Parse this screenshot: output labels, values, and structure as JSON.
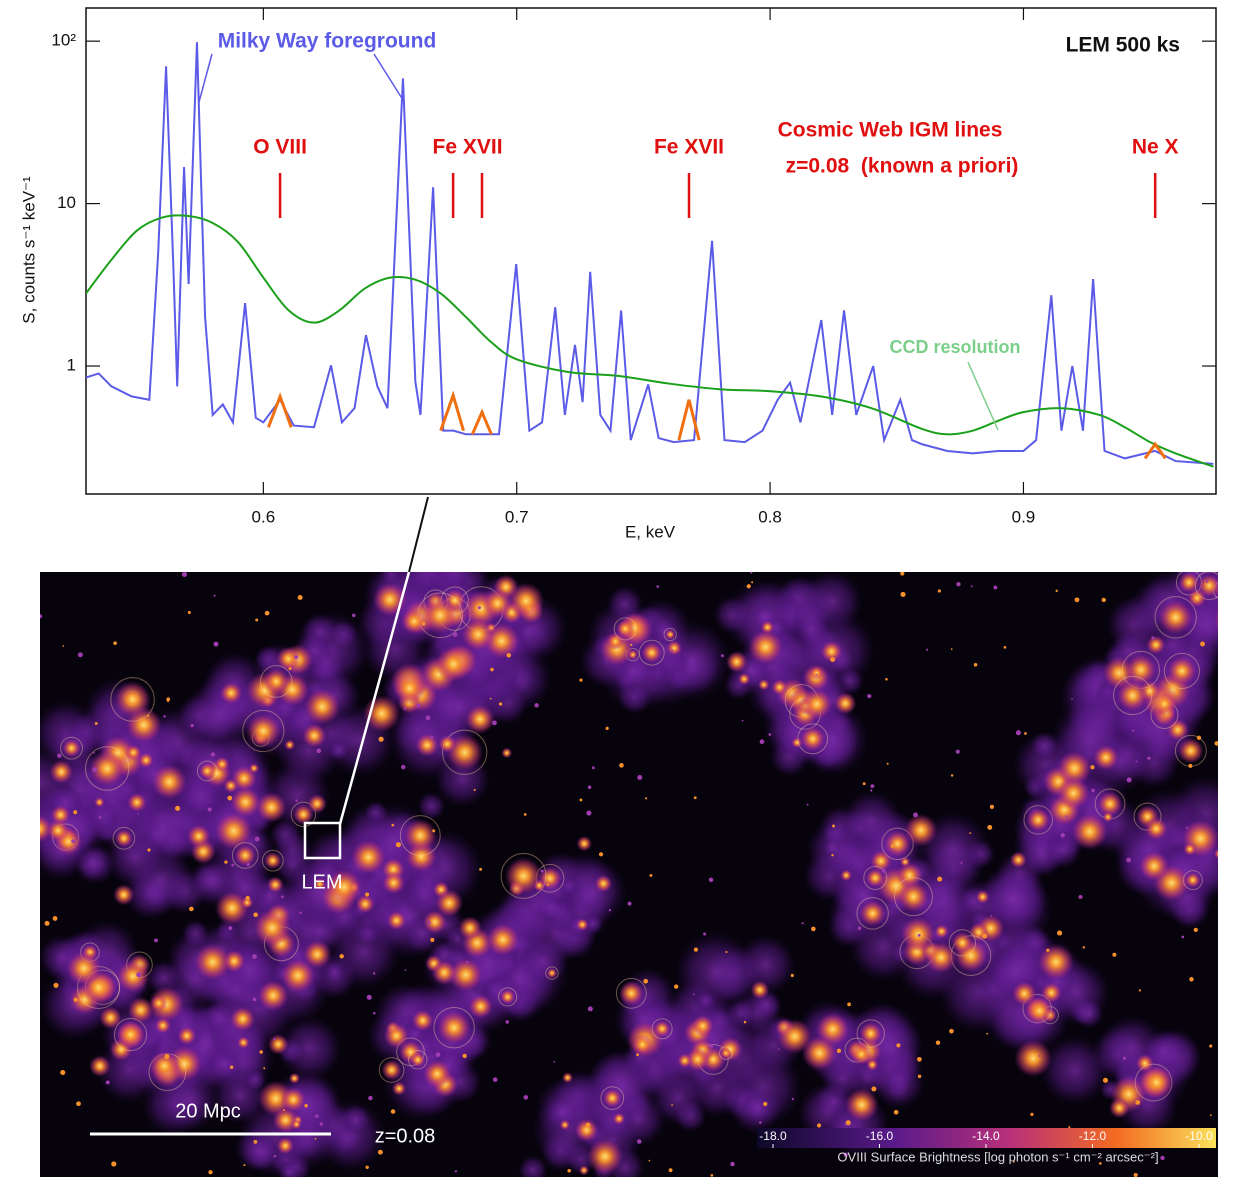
{
  "chart_data": {
    "type": "line",
    "xlabel": "E, keV",
    "ylabel": "S, counts s⁻¹ keV⁻¹",
    "xlim": [
      0.53,
      0.976
    ],
    "ylim": [
      0.163,
      160
    ],
    "log_y": true,
    "xticks": [
      0.6,
      0.7,
      0.8,
      0.9
    ],
    "yticks": [
      {
        "value": 100,
        "label": "10²"
      },
      10,
      1
    ],
    "series": [
      {
        "color": "#5b5be8",
        "x": [
          0.53,
          0.535,
          0.54,
          0.548,
          0.555,
          0.5585,
          0.5616,
          0.5645,
          0.566,
          0.5687,
          0.5705,
          0.5738,
          0.577,
          0.58,
          0.584,
          0.588,
          0.5928,
          0.597,
          0.6,
          0.6066,
          0.612,
          0.62,
          0.6267,
          0.631,
          0.636,
          0.6405,
          0.645,
          0.649,
          0.6551,
          0.66,
          0.662,
          0.667,
          0.671,
          0.675,
          0.68,
          0.687,
          0.693,
          0.6998,
          0.705,
          0.71,
          0.7152,
          0.719,
          0.723,
          0.726,
          0.729,
          0.733,
          0.737,
          0.7412,
          0.745,
          0.7519,
          0.756,
          0.762,
          0.77,
          0.7771,
          0.782,
          0.79,
          0.797,
          0.803,
          0.8079,
          0.812,
          0.8202,
          0.8245,
          0.8292,
          0.834,
          0.8407,
          0.845,
          0.8514,
          0.856,
          0.86,
          0.87,
          0.88,
          0.89,
          0.9,
          0.905,
          0.911,
          0.915,
          0.9193,
          0.9235,
          0.9275,
          0.932,
          0.94,
          0.952,
          0.96,
          0.975
        ],
        "values": [
          0.85,
          0.9,
          0.75,
          0.65,
          0.62,
          5,
          70,
          4,
          0.75,
          16.8,
          3.2,
          98.6,
          2,
          0.5,
          0.58,
          0.45,
          2.44,
          0.48,
          0.45,
          0.62,
          0.43,
          0.42,
          1.01,
          0.45,
          0.55,
          1.55,
          0.75,
          0.55,
          59,
          0.8,
          0.5,
          12.6,
          0.4,
          0.4,
          0.38,
          0.38,
          0.38,
          4.24,
          0.4,
          0.45,
          2.3,
          0.5,
          1.35,
          0.6,
          3.8,
          0.5,
          0.4,
          2.2,
          0.35,
          0.77,
          0.36,
          0.34,
          0.35,
          5.9,
          0.35,
          0.34,
          0.4,
          0.62,
          0.79,
          0.45,
          1.92,
          0.5,
          2.2,
          0.5,
          1.0,
          0.35,
          0.62,
          0.35,
          0.33,
          0.3,
          0.29,
          0.3,
          0.3,
          0.35,
          2.73,
          0.4,
          1.0,
          0.4,
          3.43,
          0.3,
          0.27,
          0.3,
          0.26,
          0.25
        ]
      },
      {
        "name": "CCD resolution",
        "color": "#1aa01a",
        "x": [
          0.53,
          0.54,
          0.55,
          0.56,
          0.57,
          0.58,
          0.59,
          0.6,
          0.61,
          0.62,
          0.63,
          0.64,
          0.65,
          0.66,
          0.67,
          0.68,
          0.69,
          0.7,
          0.72,
          0.74,
          0.76,
          0.78,
          0.8,
          0.82,
          0.84,
          0.86,
          0.87,
          0.88,
          0.89,
          0.9,
          0.915,
          0.93,
          0.94,
          0.95,
          0.96,
          0.975
        ],
        "values": [
          2.8,
          4.5,
          6.8,
          8.2,
          8.4,
          7.6,
          5.8,
          3.5,
          2.2,
          1.85,
          2.2,
          3.0,
          3.5,
          3.4,
          2.8,
          2.0,
          1.4,
          1.1,
          0.92,
          0.87,
          0.78,
          0.72,
          0.7,
          0.65,
          0.55,
          0.41,
          0.38,
          0.4,
          0.46,
          0.52,
          0.55,
          0.5,
          0.42,
          0.34,
          0.29,
          0.24
        ]
      },
      {
        "color": "#f07010",
        "x": [
          0.602,
          0.6066,
          0.611,
          0.613,
          0.67,
          0.6749,
          0.679,
          0.681,
          0.6825,
          0.6863,
          0.69,
          0.692,
          0.764,
          0.768,
          0.772,
          0.774,
          0.948,
          0.952,
          0.956
        ],
        "values": [
          0.42,
          0.65,
          0.42,
          null,
          0.4,
          0.66,
          0.4,
          null,
          0.38,
          0.52,
          0.38,
          null,
          0.35,
          0.62,
          0.35,
          null,
          0.27,
          0.33,
          0.27
        ]
      }
    ],
    "annotations": {
      "corner": "LEM 500 ks",
      "foreground": "Milky Way foreground",
      "igm": "Cosmic Web IGM lines",
      "redshift": "z=0.08  (known a priori)"
    },
    "line_labels": [
      {
        "text": "O VIII",
        "x": [
          0.6066
        ]
      },
      {
        "text": "Fe XVII",
        "x": [
          0.6749,
          0.6863
        ]
      },
      {
        "text": "Fe XVII",
        "x": [
          0.768
        ]
      },
      {
        "text": "Ne X",
        "x": [
          0.952
        ]
      }
    ]
  },
  "image": {
    "box_label": "LEM",
    "scale_label": "20 Mpc",
    "redshift_label": "z=0.08",
    "colorbar": {
      "lim": [
        -18.3,
        -9.68
      ],
      "ticks": [
        {
          "value": -18,
          "label": "-18.0"
        },
        {
          "value": -16,
          "label": "-16.0"
        },
        {
          "value": -14,
          "label": "-14.0"
        },
        {
          "value": -12,
          "label": "-12.0"
        },
        {
          "value": -10,
          "label": "-10.0"
        }
      ],
      "label": "OVIII Surface Brightness [log photon s⁻¹ cm⁻² arcsec⁻²]"
    }
  }
}
